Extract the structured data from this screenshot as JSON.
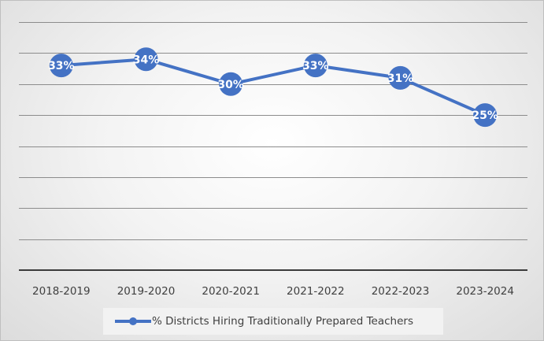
{
  "chart_data": {
    "type": "line",
    "categories": [
      "2018-2019",
      "2019-2020",
      "2020-2021",
      "2021-2022",
      "2022-2023",
      "2023-2024"
    ],
    "series": [
      {
        "name": "% Districts Hiring Traditionally Prepared Teachers",
        "values": [
          33,
          34,
          30,
          33,
          31,
          25
        ],
        "data_labels": [
          "33%",
          "34%",
          "30%",
          "33%",
          "31%",
          "25%"
        ],
        "color": "#4472c4"
      }
    ],
    "ylim": [
      0,
      40
    ],
    "y_tick_step": 5,
    "grid": true,
    "y_tick_labels_shown": false,
    "legend_position": "bottom",
    "background": "radial-gradient-gray"
  }
}
